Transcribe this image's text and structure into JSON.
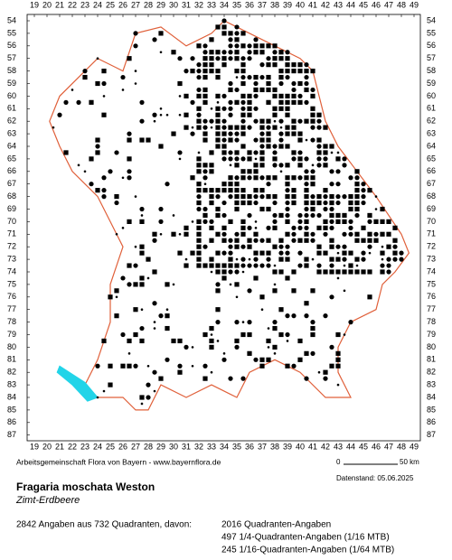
{
  "map": {
    "columns": [
      19,
      20,
      21,
      22,
      23,
      24,
      25,
      26,
      27,
      28,
      29,
      30,
      31,
      32,
      33,
      34,
      35,
      36,
      37,
      38,
      39,
      40,
      41,
      42,
      43,
      44,
      45,
      46,
      47,
      48,
      49
    ],
    "rows": [
      54,
      55,
      56,
      57,
      58,
      59,
      60,
      61,
      62,
      63,
      64,
      65,
      66,
      67,
      68,
      69,
      70,
      71,
      72,
      73,
      74,
      75,
      76,
      77,
      78,
      79,
      80,
      81,
      82,
      83,
      84,
      85,
      86,
      87
    ],
    "credit": "Arbeitsgemeinschaft Flora von Bayern - www.bayernflora.de",
    "scale_start": "0",
    "scale_end": "50 km",
    "date": "Datenstand: 05.06.2025",
    "species": "Fragaria moschata Weston",
    "common_name": "Zimt-Erdbeere",
    "summary": "2842 Angaben aus 732 Quadranten, davon:",
    "counts": [
      "2016 Quadranten-Angaben",
      "497 1/4-Quadranten-Angaben (1/16 MTB)",
      "245 1/16-Quadranten-Angaben (1/64 MTB)"
    ]
  }
}
